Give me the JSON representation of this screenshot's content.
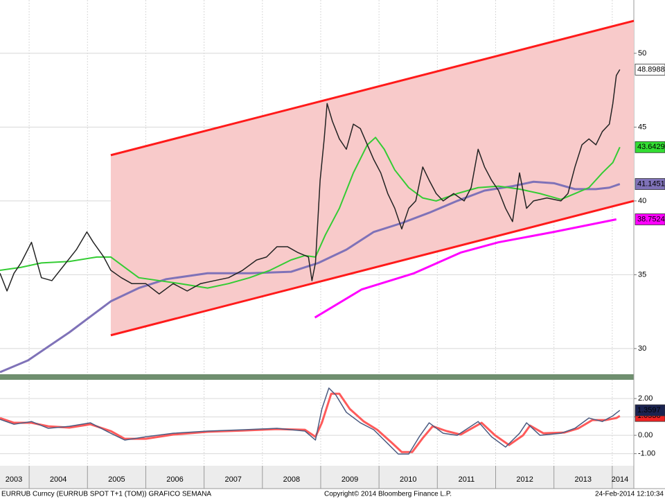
{
  "chart_data": [
    {
      "type": "line",
      "xlim": [
        2003.5,
        2014.37
      ],
      "ylim": [
        28.26,
        53.61
      ],
      "xticks": [
        2003,
        2004,
        2005,
        2006,
        2007,
        2008,
        2009,
        2010,
        2011,
        2012,
        2013,
        2014
      ],
      "yticks": [
        30,
        35,
        40,
        45,
        50
      ],
      "grid": true,
      "channel_fill": "#f8caca",
      "series": [
        {
          "color": "#ff1a1a",
          "width": 3,
          "x": [
            2005.4,
            2014.37
          ],
          "values": [
            43.1,
            52.2
          ]
        },
        {
          "color": "#ff1a1a",
          "width": 3,
          "x": [
            2005.4,
            2014.37
          ],
          "values": [
            30.9,
            40.0
          ]
        },
        {
          "color": "#ff00ff",
          "width": 3,
          "label_color": "#ff00ff",
          "label_text": "#ffffff",
          "x": [
            2008.9,
            2009.7,
            2010.6,
            2011.4,
            2012.05,
            2013.0,
            2014.07
          ],
          "values": [
            32.1,
            34.0,
            35.1,
            36.5,
            37.2,
            37.9,
            38.7524
          ]
        },
        {
          "color": "#7f72b8",
          "width": 3,
          "label_color": "#7f72b8",
          "label_text": "#ffffff",
          "x": [
            2003.5,
            2003.98,
            2004.69,
            2005.4,
            2005.88,
            2006.35,
            2007.06,
            2007.78,
            2008.49,
            2008.96,
            2009.44,
            2009.91,
            2010.39,
            2010.86,
            2011.34,
            2011.81,
            2012.29,
            2012.65,
            2013.0,
            2013.36,
            2013.72,
            2013.95,
            2014.13
          ],
          "values": [
            28.4,
            29.2,
            31.1,
            33.2,
            34.1,
            34.7,
            35.1,
            35.1,
            35.2,
            35.8,
            36.7,
            37.9,
            38.5,
            39.2,
            40.0,
            40.7,
            41.0,
            41.3,
            41.2,
            40.8,
            40.8,
            40.9,
            41.1451
          ]
        },
        {
          "color": "#33cc33",
          "width": 2,
          "label_color": "#33dd33",
          "label_text": "#000000",
          "x": [
            2003.5,
            2003.86,
            2004.21,
            2004.69,
            2005.16,
            2005.4,
            2005.64,
            2005.88,
            2006.23,
            2006.59,
            2007.06,
            2007.42,
            2007.78,
            2008.13,
            2008.49,
            2008.73,
            2008.91,
            2009.08,
            2009.32,
            2009.56,
            2009.8,
            2009.94,
            2010.09,
            2010.27,
            2010.51,
            2010.75,
            2010.98,
            2011.34,
            2011.7,
            2012.05,
            2012.41,
            2012.76,
            2013.12,
            2013.36,
            2013.6,
            2013.83,
            2014.01,
            2014.13
          ],
          "values": [
            35.3,
            35.5,
            35.8,
            35.9,
            36.2,
            36.2,
            35.5,
            34.8,
            34.6,
            34.4,
            34.1,
            34.4,
            34.8,
            35.3,
            36.0,
            36.3,
            36.2,
            37.7,
            39.5,
            41.9,
            43.8,
            44.3,
            43.5,
            42.1,
            40.9,
            40.2,
            40.0,
            40.5,
            40.9,
            41.0,
            40.8,
            40.5,
            40.1,
            40.5,
            40.9,
            41.9,
            42.6,
            43.6429
          ]
        },
        {
          "color": "#222222",
          "width": 1.5,
          "label_color": "#ffffff",
          "label_text": "#000000",
          "x": [
            2003.5,
            2003.62,
            2003.74,
            2003.86,
            2004.04,
            2004.21,
            2004.39,
            2004.57,
            2004.81,
            2004.99,
            2005.1,
            2005.28,
            2005.4,
            2005.58,
            2005.76,
            2006.0,
            2006.23,
            2006.47,
            2006.71,
            2006.94,
            2007.18,
            2007.42,
            2007.66,
            2007.9,
            2008.07,
            2008.25,
            2008.43,
            2008.61,
            2008.79,
            2008.85,
            2008.91,
            2008.99,
            2009.06,
            2009.11,
            2009.2,
            2009.32,
            2009.44,
            2009.56,
            2009.68,
            2009.8,
            2009.91,
            2010.03,
            2010.15,
            2010.27,
            2010.39,
            2010.51,
            2010.63,
            2010.75,
            2010.86,
            2010.98,
            2011.1,
            2011.28,
            2011.46,
            2011.58,
            2011.7,
            2011.81,
            2011.93,
            2012.05,
            2012.17,
            2012.29,
            2012.41,
            2012.53,
            2012.65,
            2012.88,
            2013.12,
            2013.24,
            2013.36,
            2013.48,
            2013.6,
            2013.72,
            2013.83,
            2013.95,
            2014.01,
            2014.07,
            2014.13
          ],
          "values": [
            35.1,
            33.9,
            35.1,
            35.8,
            37.2,
            34.8,
            34.6,
            35.5,
            36.7,
            37.9,
            37.2,
            36.2,
            35.3,
            34.8,
            34.4,
            34.4,
            33.7,
            34.4,
            33.9,
            34.4,
            34.6,
            34.8,
            35.3,
            36.0,
            36.2,
            36.9,
            36.9,
            36.5,
            36.2,
            34.6,
            35.8,
            41.4,
            44.2,
            46.6,
            45.4,
            44.2,
            43.5,
            45.2,
            44.9,
            43.8,
            42.8,
            41.9,
            40.5,
            39.5,
            38.1,
            39.5,
            40.0,
            42.3,
            41.4,
            40.5,
            40.0,
            40.5,
            40.0,
            40.9,
            43.5,
            42.3,
            41.4,
            40.7,
            39.5,
            38.6,
            41.9,
            39.5,
            40.0,
            40.2,
            40.0,
            40.5,
            42.3,
            43.8,
            44.2,
            43.8,
            44.7,
            45.2,
            46.6,
            48.5,
            48.8988
          ]
        }
      ]
    },
    {
      "type": "line",
      "xlim": [
        2003.5,
        2014.37
      ],
      "ylim": [
        -1.58,
        3.02
      ],
      "xticks": [
        2003,
        2004,
        2005,
        2006,
        2007,
        2008,
        2009,
        2010,
        2011,
        2012,
        2013,
        2014
      ],
      "yticks": [
        {
          "value": -1,
          "label": "-1.00"
        },
        {
          "value": 0,
          "label": "0.00"
        },
        {
          "value": 1,
          "label": "1.00"
        },
        {
          "value": 2,
          "label": "2.00"
        }
      ],
      "grid": true,
      "series": [
        {
          "color": "#ff5a5a",
          "width": 3,
          "label_color": "#ee2222",
          "label_text": "#ffffff",
          "x": [
            2003.5,
            2003.74,
            2004.04,
            2004.33,
            2004.69,
            2005.05,
            2005.4,
            2005.64,
            2006.0,
            2006.47,
            2007.06,
            2007.66,
            2008.25,
            2008.73,
            2008.91,
            2009.02,
            2009.18,
            2009.32,
            2009.5,
            2009.74,
            2009.97,
            2010.21,
            2010.39,
            2010.57,
            2010.75,
            2010.92,
            2011.16,
            2011.4,
            2011.76,
            2011.99,
            2012.23,
            2012.47,
            2012.59,
            2012.82,
            2013.18,
            2013.42,
            2013.66,
            2013.89,
            2014.07,
            2014.13
          ],
          "values": [
            0.94,
            0.68,
            0.68,
            0.49,
            0.42,
            0.6,
            0.23,
            -0.19,
            -0.19,
            0.04,
            0.19,
            0.26,
            0.34,
            0.3,
            -0.08,
            0.68,
            2.26,
            2.26,
            1.43,
            0.75,
            0.3,
            -0.38,
            -0.91,
            -0.91,
            -0.15,
            0.49,
            0.23,
            0.04,
            0.68,
            0.0,
            -0.53,
            0.0,
            0.53,
            0.11,
            0.15,
            0.38,
            0.83,
            0.83,
            0.94,
            1.0536
          ]
        },
        {
          "color": "#4a5a80",
          "width": 1.5,
          "label_color": "#1a2250",
          "label_text": "#ffffff",
          "x": [
            2003.5,
            2003.74,
            2004.04,
            2004.33,
            2004.69,
            2005.05,
            2005.4,
            2005.64,
            2006.0,
            2006.47,
            2007.06,
            2007.66,
            2008.25,
            2008.73,
            2008.91,
            2009.02,
            2009.14,
            2009.26,
            2009.44,
            2009.68,
            2009.91,
            2010.15,
            2010.33,
            2010.51,
            2010.69,
            2010.86,
            2011.1,
            2011.34,
            2011.7,
            2011.93,
            2012.17,
            2012.41,
            2012.53,
            2012.76,
            2013.12,
            2013.36,
            2013.6,
            2013.83,
            2014.01,
            2014.13
          ],
          "values": [
            0.87,
            0.6,
            0.75,
            0.38,
            0.49,
            0.68,
            0.11,
            -0.26,
            -0.08,
            0.11,
            0.23,
            0.3,
            0.38,
            0.23,
            -0.26,
            1.43,
            2.57,
            2.19,
            1.25,
            0.68,
            0.3,
            -0.45,
            -1.02,
            -1.02,
            -0.08,
            0.68,
            0.11,
            0.0,
            0.75,
            -0.08,
            -0.64,
            0.11,
            0.68,
            0.0,
            0.11,
            0.38,
            0.94,
            0.75,
            1.06,
            1.3597
          ]
        }
      ]
    }
  ],
  "footer": {
    "left": "EURRUB Curncy (EURRUB SPOT T+1 (TOM)) GRAFICO SEMANA",
    "center": "Copyright© 2014 Bloomberg Finance L.P.",
    "right": "24-Feb-2014 12:10:34"
  }
}
